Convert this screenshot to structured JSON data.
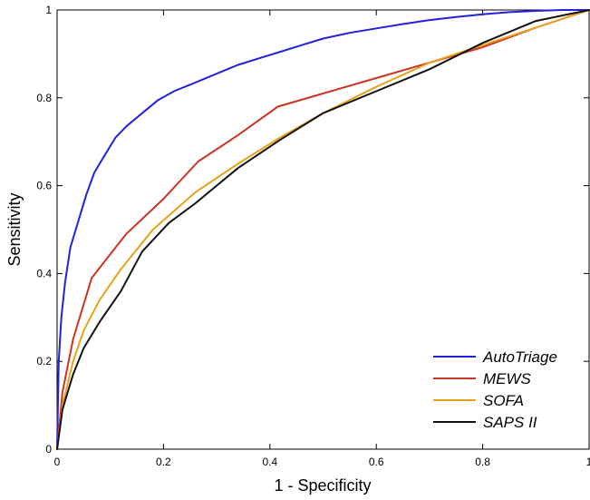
{
  "chart_data": {
    "type": "line",
    "title": "",
    "xlabel": "1 - Specificity",
    "ylabel": "Sensitivity",
    "xlim": [
      0,
      1
    ],
    "ylim": [
      0,
      1
    ],
    "xticks": [
      0,
      0.2,
      0.4,
      0.6,
      0.8,
      1
    ],
    "yticks": [
      0,
      0.2,
      0.4,
      0.6,
      0.8,
      1
    ],
    "xtick_labels": [
      "0",
      "0.2",
      "0.4",
      "0.6",
      "0.8",
      "1"
    ],
    "ytick_labels": [
      "0",
      "0.2",
      "0.4",
      "0.6",
      "0.8",
      "1"
    ],
    "grid": false,
    "legend_position": "bottom-right",
    "series": [
      {
        "name": "AutoTriage",
        "color": "#2222dd",
        "x": [
          0,
          0.003,
          0.008,
          0.015,
          0.025,
          0.04,
          0.055,
          0.07,
          0.09,
          0.11,
          0.13,
          0.16,
          0.19,
          0.22,
          0.26,
          0.3,
          0.34,
          0.38,
          0.42,
          0.46,
          0.5,
          0.55,
          0.6,
          0.65,
          0.7,
          0.75,
          0.8,
          0.85,
          0.9,
          0.95,
          1
        ],
        "y": [
          0,
          0.2,
          0.3,
          0.38,
          0.46,
          0.52,
          0.58,
          0.63,
          0.67,
          0.71,
          0.735,
          0.765,
          0.795,
          0.815,
          0.835,
          0.855,
          0.875,
          0.89,
          0.905,
          0.92,
          0.935,
          0.948,
          0.958,
          0.968,
          0.977,
          0.984,
          0.99,
          0.995,
          0.998,
          1,
          1
        ]
      },
      {
        "name": "MEWS",
        "color": "#cc3322",
        "x": [
          0,
          0.01,
          0.03,
          0.065,
          0.13,
          0.2,
          0.265,
          0.34,
          0.415,
          0.5,
          0.6,
          0.7,
          0.8,
          0.9,
          1
        ],
        "y": [
          0,
          0.13,
          0.25,
          0.39,
          0.49,
          0.57,
          0.655,
          0.715,
          0.78,
          0.81,
          0.845,
          0.88,
          0.915,
          0.96,
          1
        ]
      },
      {
        "name": "SOFA",
        "color": "#e8a21a",
        "x": [
          0,
          0.01,
          0.03,
          0.05,
          0.08,
          0.12,
          0.18,
          0.26,
          0.34,
          0.42,
          0.5,
          0.6,
          0.7,
          0.8,
          0.9,
          1
        ],
        "y": [
          0,
          0.1,
          0.2,
          0.27,
          0.34,
          0.41,
          0.5,
          0.585,
          0.65,
          0.71,
          0.765,
          0.825,
          0.88,
          0.92,
          0.96,
          1
        ]
      },
      {
        "name": "SAPS II",
        "color": "#111111",
        "x": [
          0,
          0.01,
          0.03,
          0.05,
          0.08,
          0.12,
          0.16,
          0.21,
          0.26,
          0.34,
          0.42,
          0.5,
          0.6,
          0.7,
          0.8,
          0.9,
          1
        ],
        "y": [
          0,
          0.09,
          0.17,
          0.23,
          0.29,
          0.36,
          0.45,
          0.515,
          0.56,
          0.64,
          0.705,
          0.765,
          0.815,
          0.865,
          0.925,
          0.975,
          1
        ]
      }
    ]
  }
}
